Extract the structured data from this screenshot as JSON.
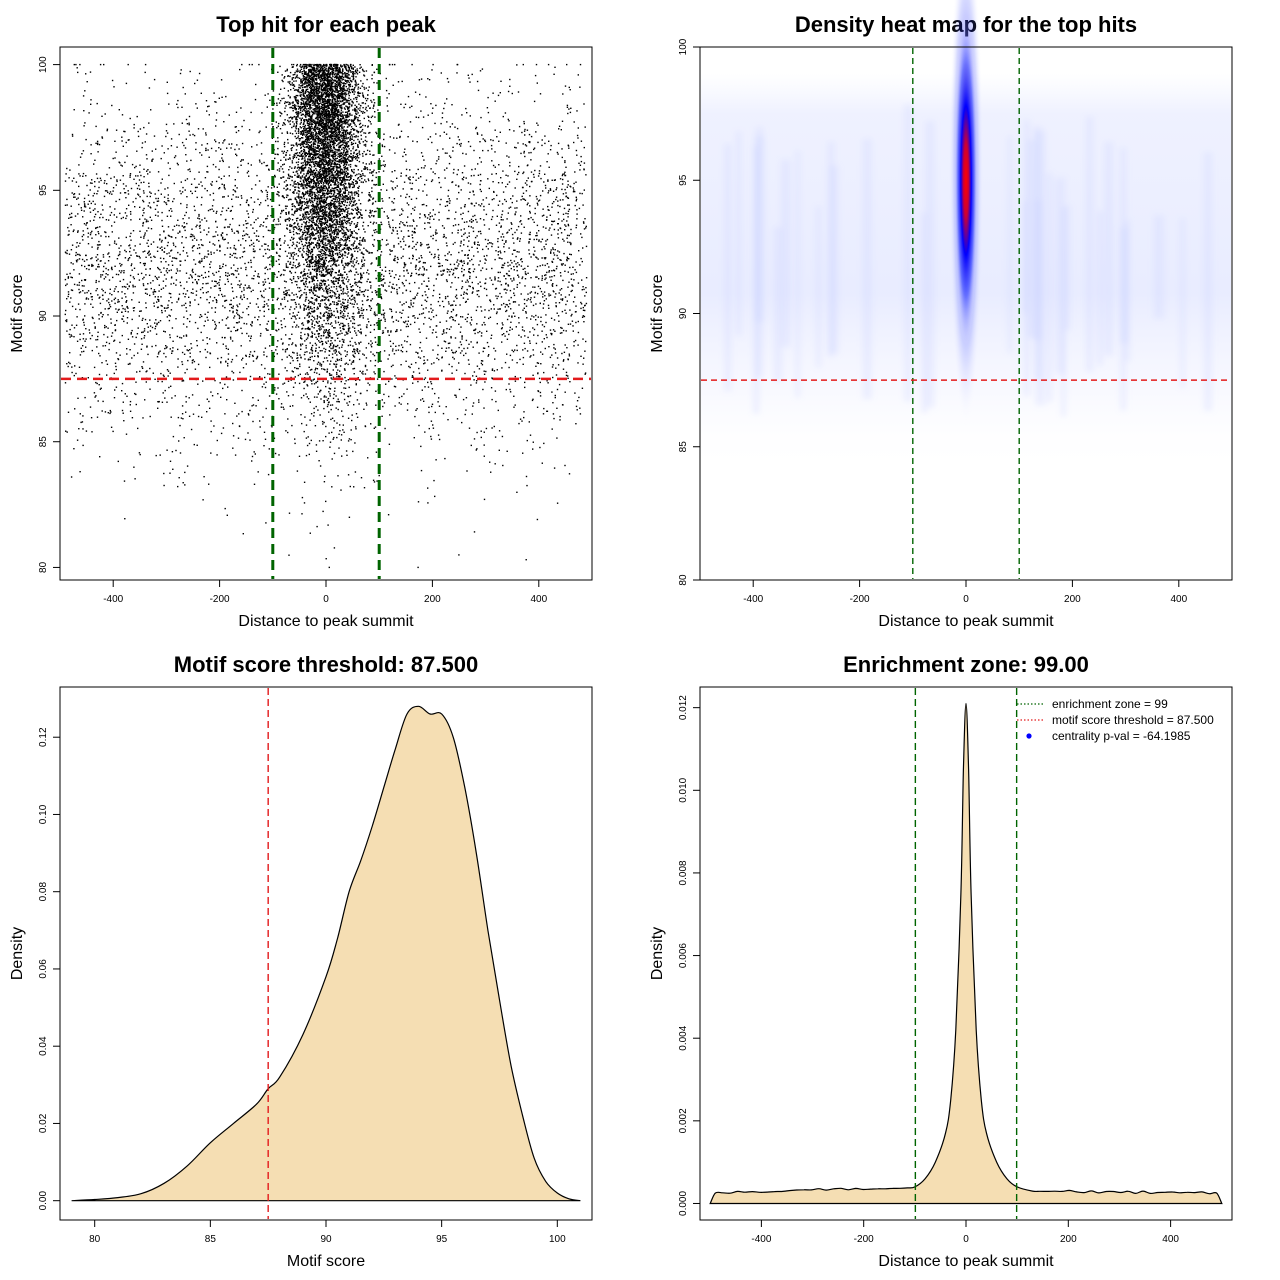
{
  "chart_data": [
    {
      "id": "scatter",
      "type": "scatter",
      "title": "Top hit for each peak",
      "xlabel": "Distance to peak summit",
      "ylabel": "Motif score",
      "xlim": [
        -500,
        500
      ],
      "ylim": [
        79.5,
        100.7
      ],
      "xticks": [
        -400,
        -200,
        0,
        200,
        400
      ],
      "yticks": [
        80,
        85,
        90,
        95,
        100
      ],
      "points_description": "Approximately 12000 peaks; dense column centered at distance 0 (sd ~35) with scores 83-100, sparse uniform background across -490..490 with scores 81-100",
      "vlines": [
        -100,
        100
      ],
      "vline_color": "#006400",
      "hline": 87.5,
      "hline_color": "#e31a1c",
      "point_color": "#000000"
    },
    {
      "id": "heatmap",
      "type": "heatmap",
      "title": "Density heat map for the top hits",
      "xlabel": "Distance to peak summit",
      "ylabel": "Motif score",
      "xlim": [
        -500,
        500
      ],
      "ylim": [
        80,
        100
      ],
      "xticks": [
        -400,
        -200,
        0,
        200,
        400
      ],
      "yticks": [
        80,
        85,
        90,
        95,
        100
      ],
      "hotspot": {
        "x": 0,
        "y": 95,
        "x_sd": 14,
        "y_sd": 2.6
      },
      "colors": [
        "#ffffff",
        "#0000ff",
        "#ff0000"
      ],
      "vlines": [
        -100,
        100
      ],
      "vline_color": "#006400",
      "hline": 87.5,
      "hline_color": "#e31a1c"
    },
    {
      "id": "score-density",
      "type": "area",
      "title": "Motif score threshold: 87.500",
      "xlabel": "Motif score",
      "ylabel": "Density",
      "xlim": [
        78.5,
        101.5
      ],
      "ylim": [
        -0.005,
        0.133
      ],
      "xticks": [
        80,
        85,
        90,
        95,
        100
      ],
      "yticks": [
        0.0,
        0.02,
        0.04,
        0.06,
        0.08,
        0.1,
        0.12
      ],
      "ytick_labels": [
        "0.00",
        "0.02",
        "0.04",
        "0.06",
        "0.08",
        "0.10",
        "0.12"
      ],
      "x": [
        79,
        80,
        81,
        82,
        83,
        84,
        85,
        86,
        87,
        87.5,
        88,
        89,
        90,
        90.5,
        91,
        91.5,
        92,
        92.5,
        93,
        93.5,
        94,
        94.5,
        95,
        95.5,
        96,
        96.5,
        97,
        97.5,
        98,
        98.5,
        99,
        99.5,
        100,
        100.5,
        101
      ],
      "y": [
        0.0,
        0.0003,
        0.0008,
        0.0018,
        0.0045,
        0.009,
        0.015,
        0.02,
        0.025,
        0.029,
        0.032,
        0.043,
        0.058,
        0.068,
        0.08,
        0.088,
        0.097,
        0.107,
        0.117,
        0.126,
        0.128,
        0.126,
        0.126,
        0.12,
        0.107,
        0.09,
        0.07,
        0.052,
        0.035,
        0.022,
        0.011,
        0.005,
        0.002,
        0.0005,
        0.0
      ],
      "fill_color": "#f5deb3",
      "vline": 87.5,
      "vline_color": "#e31a1c"
    },
    {
      "id": "distance-density",
      "type": "area",
      "title": "Enrichment zone: 99.00",
      "xlabel": "Distance to peak summit",
      "ylabel": "Density",
      "xlim": [
        -520,
        520
      ],
      "ylim": [
        -0.0004,
        0.0125
      ],
      "xticks": [
        -400,
        -200,
        0,
        200,
        400
      ],
      "yticks": [
        0.0,
        0.002,
        0.004,
        0.006,
        0.008,
        0.01,
        0.012
      ],
      "ytick_labels": [
        "0.000",
        "0.002",
        "0.004",
        "0.006",
        "0.008",
        "0.010",
        "0.012"
      ],
      "x": [
        -500,
        -490,
        -100,
        -80,
        -60,
        -40,
        -30,
        -20,
        -10,
        -5,
        0,
        5,
        10,
        20,
        30,
        40,
        60,
        80,
        100,
        130,
        490,
        500
      ],
      "y": [
        0.0,
        0.00025,
        0.0004,
        0.0006,
        0.001,
        0.0017,
        0.0025,
        0.0042,
        0.0075,
        0.0105,
        0.0121,
        0.0105,
        0.0075,
        0.0042,
        0.0025,
        0.0017,
        0.001,
        0.0006,
        0.0004,
        0.0003,
        0.00025,
        0.0
      ],
      "fill_color": "#f5deb3",
      "vlines": [
        -99,
        99
      ],
      "vline_color": "#006400",
      "legend": [
        {
          "label": "enrichment zone = 99",
          "style": "dotted",
          "color": "#006400"
        },
        {
          "label": "motif score threshold = 87.500",
          "style": "dotted",
          "color": "#e31a1c"
        },
        {
          "label": "centrality p-val = -64.1985",
          "style": "point",
          "color": "#0000ff"
        }
      ]
    }
  ]
}
